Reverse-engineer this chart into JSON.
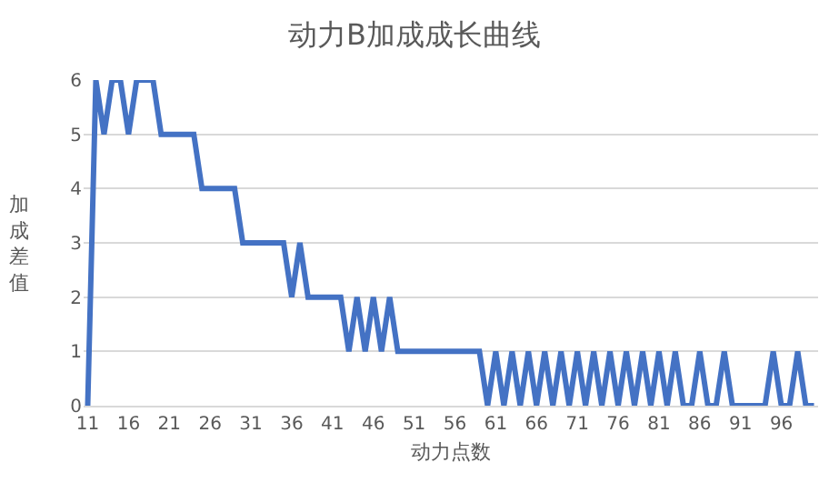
{
  "chart_data": {
    "type": "line",
    "title": "动力B加成成长曲线",
    "xlabel": "动力点数",
    "ylabel": "加成差值",
    "categories": [
      "11",
      null,
      null,
      null,
      null,
      "16",
      null,
      null,
      null,
      null,
      "21",
      null,
      null,
      null,
      null,
      "26",
      null,
      null,
      null,
      null,
      "31",
      null,
      null,
      null,
      null,
      "36",
      null,
      null,
      null,
      null,
      "41",
      null,
      null,
      null,
      null,
      "46",
      null,
      null,
      null,
      null,
      "51",
      null,
      null,
      null,
      null,
      "56",
      null,
      null,
      null,
      null,
      "61",
      null,
      null,
      null,
      null,
      "66",
      null,
      null,
      null,
      null,
      "71",
      null,
      null,
      null,
      null,
      "76",
      null,
      null,
      null,
      null,
      "81",
      null,
      null,
      null,
      null,
      "86",
      null,
      null,
      null,
      null,
      "91",
      null,
      null,
      null,
      null,
      "96",
      null,
      null,
      null,
      null
    ],
    "series": [
      {
        "color": "#4472c4",
        "values": [
          0,
          6,
          5,
          6,
          6,
          5,
          6,
          6,
          6,
          5,
          5,
          5,
          5,
          5,
          4,
          4,
          4,
          4,
          4,
          3,
          3,
          3,
          3,
          3,
          3,
          2,
          3,
          2,
          2,
          2,
          2,
          2,
          1,
          2,
          1,
          2,
          1,
          2,
          1,
          1,
          1,
          1,
          1,
          1,
          1,
          1,
          1,
          1,
          1,
          0,
          1,
          0,
          1,
          0,
          1,
          0,
          1,
          0,
          1,
          0,
          1,
          0,
          1,
          0,
          1,
          0,
          1,
          0,
          1,
          0,
          1,
          0,
          1,
          0,
          0,
          1,
          0,
          0,
          1,
          0,
          0,
          0,
          0,
          0,
          1,
          0,
          0,
          1,
          0,
          0
        ]
      }
    ],
    "ylim": [
      0,
      6
    ],
    "yticks": [
      0,
      1,
      2,
      3,
      4,
      5,
      6
    ],
    "grid": "y",
    "marker": "none",
    "line_style": "solid"
  }
}
